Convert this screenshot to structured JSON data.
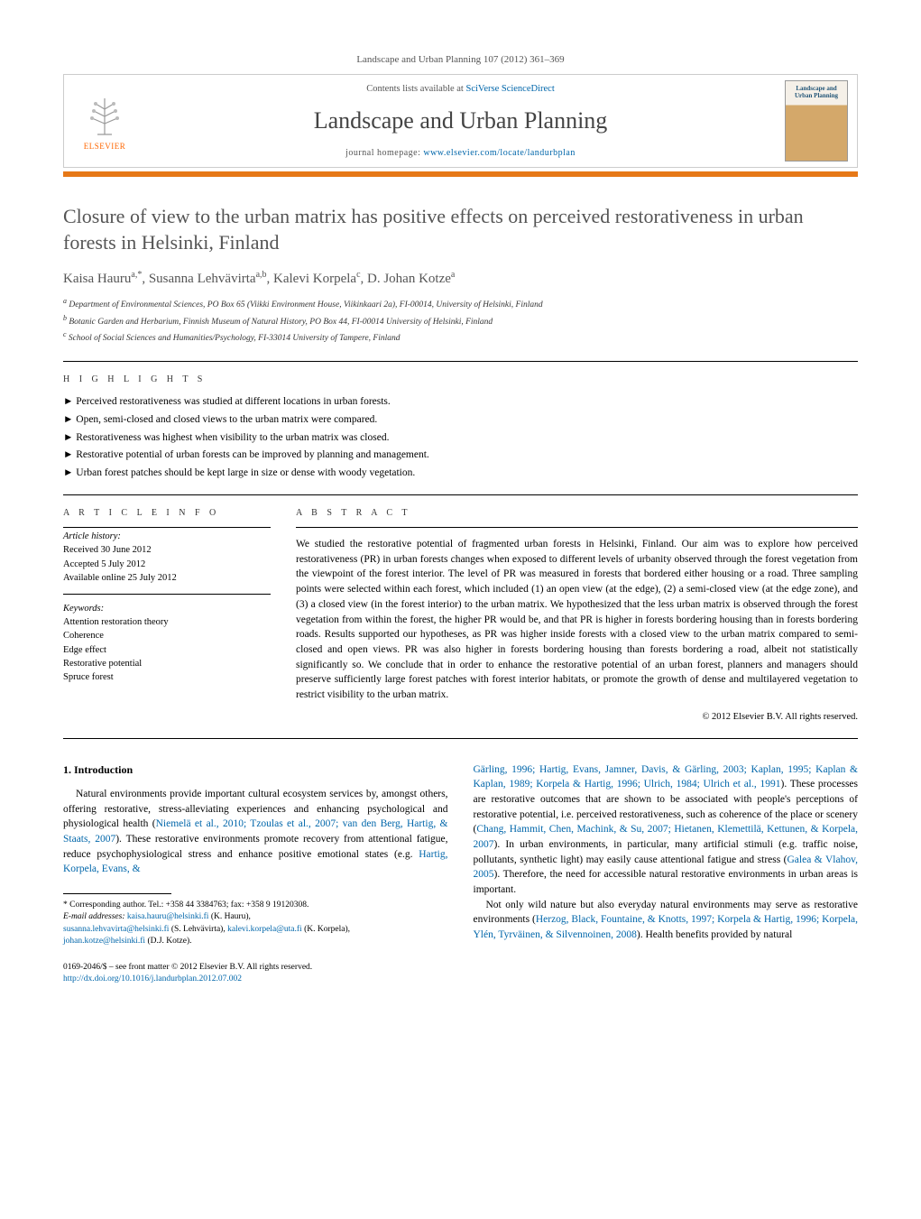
{
  "header": {
    "citation": "Landscape and Urban Planning 107 (2012) 361–369",
    "contents_prefix": "Contents lists available at ",
    "contents_link": "SciVerse ScienceDirect",
    "journal_name": "Landscape and Urban Planning",
    "homepage_prefix": "journal homepage: ",
    "homepage_url": "www.elsevier.com/locate/landurbplan",
    "publisher_name": "ELSEVIER",
    "cover_label": "Landscape and\nUrban Planning"
  },
  "article": {
    "title": "Closure of view to the urban matrix has positive effects on perceived restorativeness in urban forests in Helsinki, Finland",
    "authors_html": "Kaisa Hauru<sup>a,*</sup>, Susanna Lehvävirta<sup>a,b</sup>, Kalevi Korpela<sup>c</sup>, D. Johan Kotze<sup>a</sup>",
    "affiliations": [
      "a Department of Environmental Sciences, PO Box 65 (Viikki Environment House, Viikinkaari 2a), FI-00014, University of Helsinki, Finland",
      "b Botanic Garden and Herbarium, Finnish Museum of Natural History, PO Box 44, FI-00014 University of Helsinki, Finland",
      "c School of Social Sciences and Humanities/Psychology, FI-33014 University of Tampere, Finland"
    ]
  },
  "highlights": {
    "label": "h i g h l i g h t s",
    "items": [
      "Perceived restorativeness was studied at different locations in urban forests.",
      "Open, semi-closed and closed views to the urban matrix were compared.",
      "Restorativeness was highest when visibility to the urban matrix was closed.",
      "Restorative potential of urban forests can be improved by planning and management.",
      "Urban forest patches should be kept large in size or dense with woody vegetation."
    ]
  },
  "article_info": {
    "label": "a r t i c l e   i n f o",
    "history_heading": "Article history:",
    "history": [
      "Received 30 June 2012",
      "Accepted 5 July 2012",
      "Available online 25 July 2012"
    ],
    "keywords_heading": "Keywords:",
    "keywords": [
      "Attention restoration theory",
      "Coherence",
      "Edge effect",
      "Restorative potential",
      "Spruce forest"
    ]
  },
  "abstract": {
    "label": "a b s t r a c t",
    "text": "We studied the restorative potential of fragmented urban forests in Helsinki, Finland. Our aim was to explore how perceived restorativeness (PR) in urban forests changes when exposed to different levels of urbanity observed through the forest vegetation from the viewpoint of the forest interior. The level of PR was measured in forests that bordered either housing or a road. Three sampling points were selected within each forest, which included (1) an open view (at the edge), (2) a semi-closed view (at the edge zone), and (3) a closed view (in the forest interior) to the urban matrix. We hypothesized that the less urban matrix is observed through the forest vegetation from within the forest, the higher PR would be, and that PR is higher in forests bordering housing than in forests bordering roads. Results supported our hypotheses, as PR was higher inside forests with a closed view to the urban matrix compared to semi-closed and open views. PR was also higher in forests bordering housing than forests bordering a road, albeit not statistically significantly so. We conclude that in order to enhance the restorative potential of an urban forest, planners and managers should preserve sufficiently large forest patches with forest interior habitats, or promote the growth of dense and multilayered vegetation to restrict visibility to the urban matrix.",
    "copyright": "© 2012 Elsevier B.V. All rights reserved."
  },
  "body": {
    "intro_heading": "1. Introduction",
    "col1_p1_pre": "Natural environments provide important cultural ecosystem services by, amongst others, offering restorative, stress-alleviating experiences and enhancing psychological and physiological health (",
    "col1_ref1": "Niemelä et al., 2010; Tzoulas et al., 2007; van den Berg, Hartig, & Staats, 2007",
    "col1_p1_mid": "). These restorative environments promote recovery from attentional fatigue, reduce psychophysiological stress and enhance positive emotional states (e.g. ",
    "col1_ref2": "Hartig, Korpela, Evans, &",
    "col2_ref1": "Gärling, 1996; Hartig, Evans, Jamner, Davis, & Gärling, 2003; Kaplan, 1995; Kaplan & Kaplan, 1989; Korpela & Hartig, 1996; Ulrich, 1984; Ulrich et al., 1991",
    "col2_p1_a": "). These processes are restorative outcomes that are shown to be associated with people's perceptions of restorative potential, i.e. perceived restorativeness, such as coherence of the place or scenery (",
    "col2_ref2": "Chang, Hammit, Chen, Machink, & Su, 2007; Hietanen, Klemettilä, Kettunen, & Korpela, 2007",
    "col2_p1_b": "). In urban environments, in particular, many artificial stimuli (e.g. traffic noise, pollutants, synthetic light) may easily cause attentional fatigue and stress (",
    "col2_ref3": "Galea & Vlahov, 2005",
    "col2_p1_c": "). Therefore, the need for accessible natural restorative environments in urban areas is important.",
    "col2_p2_a": "Not only wild nature but also everyday natural environments may serve as restorative environments (",
    "col2_ref4": "Herzog, Black, Fountaine, & Knotts, 1997; Korpela & Hartig, 1996; Korpela, Ylén, Tyrväinen, & Silvennoinen, 2008",
    "col2_p2_b": "). Health benefits provided by natural"
  },
  "footnote": {
    "corresponding": "* Corresponding author. Tel.: +358 44 3384763; fax: +358 9 19120308.",
    "email_label": "E-mail addresses: ",
    "emails": [
      {
        "addr": "kaisa.hauru@helsinki.fi",
        "who": " (K. Hauru),"
      },
      {
        "addr": "susanna.lehvavirta@helsinki.fi",
        "who": " (S. Lehvävirta), "
      },
      {
        "addr": "kalevi.korpela@uta.fi",
        "who": " (K. Korpela),"
      },
      {
        "addr": "johan.kotze@helsinki.fi",
        "who": " (D.J. Kotze)."
      }
    ]
  },
  "footer": {
    "line1": "0169-2046/$ – see front matter © 2012 Elsevier B.V. All rights reserved.",
    "doi": "http://dx.doi.org/10.1016/j.landurbplan.2012.07.002"
  },
  "colors": {
    "orange_bar": "#e67817",
    "link": "#0066aa",
    "title_gray": "#555555"
  }
}
